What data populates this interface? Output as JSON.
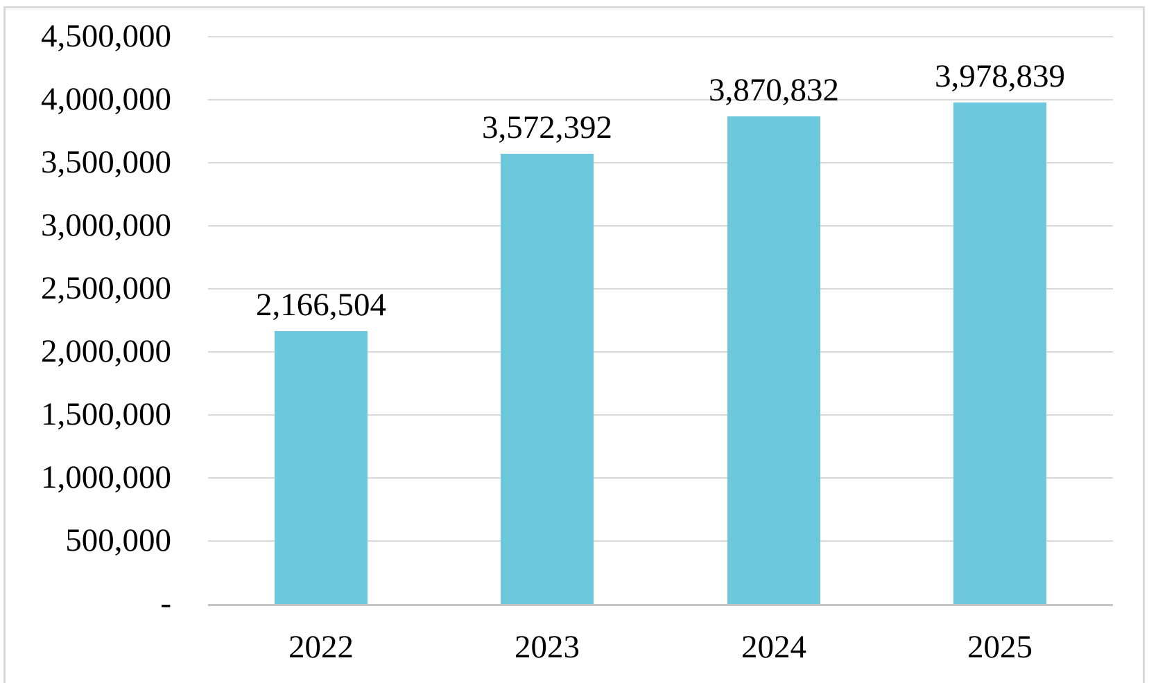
{
  "chart_data": {
    "type": "bar",
    "title": "",
    "categories": [
      "2022",
      "2023",
      "2024",
      "2025"
    ],
    "values": [
      2166504,
      3572392,
      3870832,
      3978839
    ],
    "value_labels": [
      "2,166,504",
      "3,572,392",
      "3,870,832",
      "3,978,839"
    ],
    "ylim": [
      0,
      4500000
    ],
    "ytick_step": 500000,
    "ytick_labels": [
      "4,500,000",
      "4,000,000",
      "3,500,000",
      "3,000,000",
      "2,500,000",
      "2,000,000",
      "1,500,000",
      "1,000,000",
      "500,000",
      "-"
    ],
    "grid": true,
    "legend": false,
    "xlabel": "",
    "ylabel": "",
    "colors": {
      "bar": "#6dc7dd",
      "gridline": "#d9d9d9",
      "axis_line": "#c6c6c6",
      "frame_border": "#d9d9d9",
      "text": "#000000",
      "background": "#ffffff"
    }
  }
}
